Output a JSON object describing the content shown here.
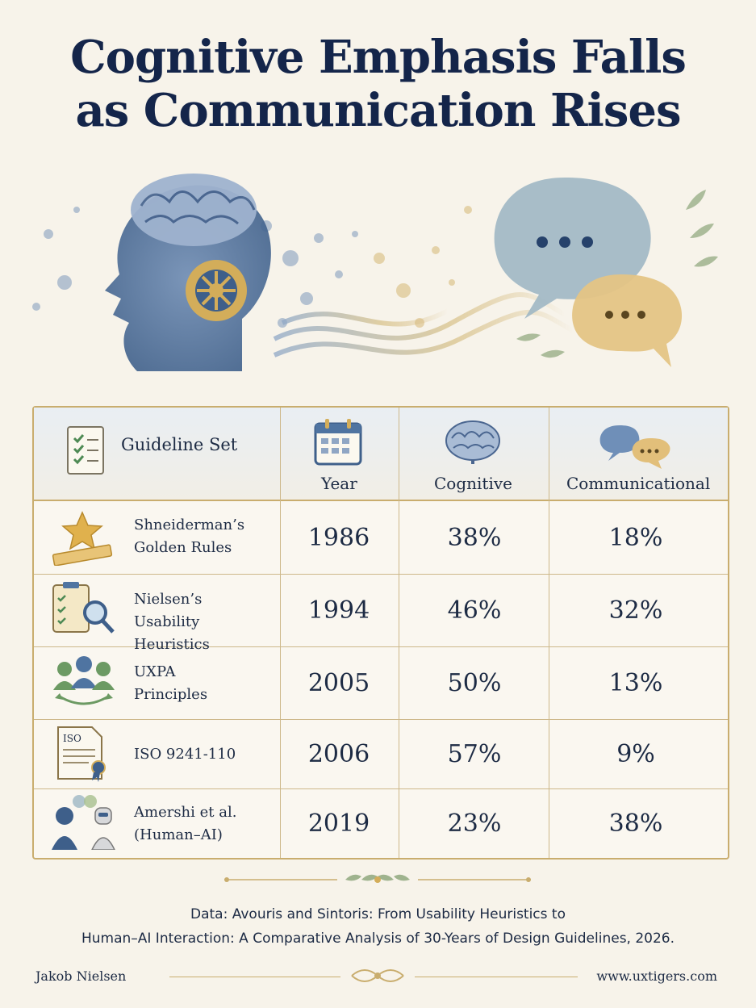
{
  "title": "Cognitive Emphasis Falls as Communication Rises",
  "columns": {
    "guideline": "Guideline Set",
    "year": "Year",
    "cognitive": "Cognitive",
    "communicational": "Communicational"
  },
  "chart_data": {
    "type": "table",
    "title": "Cognitive Emphasis Falls as Communication Rises",
    "columns": [
      "Guideline Set",
      "Year",
      "Cognitive",
      "Communicational"
    ],
    "rows": [
      {
        "name": "Shneiderman’s Golden Rules",
        "name_lines": [
          "Shneiderman’s",
          "Golden Rules"
        ],
        "year": "1986",
        "cognitive": "38%",
        "communicational": "18%",
        "icon": "star-ruler-icon"
      },
      {
        "name": "Nielsen’s Usability Heuristics",
        "name_lines": [
          "Nielsen’s",
          "Usability Heuristics"
        ],
        "year": "1994",
        "cognitive": "46%",
        "communicational": "32%",
        "icon": "clipboard-magnifier-icon"
      },
      {
        "name": "UXPA Principles",
        "name_lines": [
          "UXPA",
          "Principles"
        ],
        "year": "2005",
        "cognitive": "50%",
        "communicational": "13%",
        "icon": "people-cycle-icon"
      },
      {
        "name": "ISO 9241-110",
        "name_lines": [
          "ISO 9241-110"
        ],
        "year": "2006",
        "cognitive": "57%",
        "communicational": "9%",
        "icon": "iso-document-icon"
      },
      {
        "name": "Amershi et al. (Human-AI)",
        "name_lines": [
          "Amershi et al.",
          "(Human–AI)"
        ],
        "year": "2019",
        "cognitive": "23%",
        "communicational": "38%",
        "icon": "human-robot-icon"
      }
    ]
  },
  "source_line1": "Data: Avouris and Sintoris: From Usability Heuristics to",
  "source_line2": "Human–AI Interaction: A Comparative Analysis of 30-Years of Design Guidelines, 2026.",
  "author": "Jakob Nielsen",
  "website": "www.uxtigers.com",
  "colors": {
    "navy": "#14254a",
    "gold": "#c9ad6e",
    "blue": "#5f7fa6",
    "paper": "#f7f3ea"
  }
}
